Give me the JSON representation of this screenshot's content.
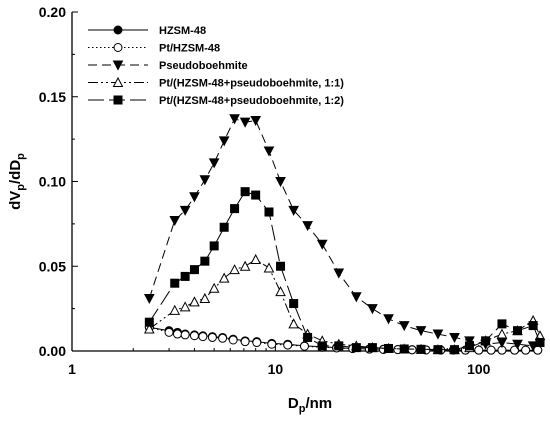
{
  "chart_data": {
    "type": "line",
    "xlabel": "D",
    "xlabel_sub": "p",
    "xlabel_suffix": "/nm",
    "ylabel_parts": [
      "dV",
      "p",
      "/dD",
      "p"
    ],
    "xscale": "log",
    "xlim": [
      1,
      200
    ],
    "ylim": [
      0,
      0.2
    ],
    "xticks": [
      1,
      10,
      100
    ],
    "xtick_labels": [
      "1",
      "10",
      "100"
    ],
    "yticks": [
      0.0,
      0.05,
      0.1,
      0.15,
      0.2
    ],
    "ytick_labels": [
      "0.00",
      "0.05",
      "0.10",
      "0.15",
      "0.20"
    ],
    "grid": false,
    "legend_position": "top-left",
    "series": [
      {
        "name": "HZSM-48",
        "marker": "circle-filled",
        "line": "solid",
        "x": [
          2.4,
          3.0,
          3.3,
          3.6,
          4.0,
          4.4,
          4.9,
          5.5,
          6.2,
          7.1,
          8.1,
          9.6,
          11.5,
          13.9,
          17,
          20,
          24,
          29,
          34,
          40,
          47,
          55,
          65,
          75,
          86,
          100,
          115,
          130,
          150,
          170,
          195
        ],
        "y": [
          0.014,
          0.012,
          0.011,
          0.01,
          0.0095,
          0.009,
          0.0085,
          0.008,
          0.007,
          0.006,
          0.0055,
          0.0045,
          0.004,
          0.003,
          0.0025,
          0.002,
          0.0015,
          0.0012,
          0.001,
          0.0009,
          0.0008,
          0.0007,
          0.0006,
          0.0006,
          0.0005,
          0.0005,
          0.0005,
          0.0005,
          0.0005,
          0.0005,
          0.0005
        ]
      },
      {
        "name": "Pt/HZSM-48",
        "marker": "circle-open",
        "line": "dotted",
        "x": [
          2.4,
          3.0,
          3.3,
          3.6,
          4.0,
          4.4,
          4.9,
          5.5,
          6.2,
          7.1,
          8.1,
          9.6,
          11.5,
          13.9,
          17,
          20,
          24,
          29,
          34,
          40,
          47,
          55,
          65,
          75,
          86,
          100,
          115,
          130,
          150,
          170,
          195
        ],
        "y": [
          0.014,
          0.011,
          0.01,
          0.0095,
          0.009,
          0.0085,
          0.008,
          0.0075,
          0.0065,
          0.0055,
          0.005,
          0.004,
          0.0035,
          0.0028,
          0.0022,
          0.0018,
          0.0014,
          0.0011,
          0.0009,
          0.0008,
          0.0007,
          0.0006,
          0.0005,
          0.0005,
          0.0005,
          0.0005,
          0.0005,
          0.0005,
          0.0005,
          0.0005,
          0.0005
        ]
      },
      {
        "name": "Pseudoboehmite",
        "marker": "triangle-down-filled",
        "line": "dashed",
        "x": [
          2.4,
          3.2,
          3.6,
          4.0,
          4.5,
          5.0,
          5.6,
          6.3,
          7.1,
          8.0,
          9.3,
          10.6,
          12.3,
          14.4,
          17,
          20.5,
          25,
          30,
          36,
          43,
          52,
          63,
          76,
          90,
          108,
          130,
          155,
          185
        ],
        "y": [
          0.031,
          0.077,
          0.083,
          0.091,
          0.101,
          0.111,
          0.124,
          0.137,
          0.135,
          0.136,
          0.118,
          0.1,
          0.083,
          0.074,
          0.063,
          0.046,
          0.032,
          0.025,
          0.019,
          0.015,
          0.012,
          0.01,
          0.008,
          0.006,
          0.004,
          0.005,
          0.004,
          0.003
        ]
      },
      {
        "name": "Pt/(HZSM-48+pseudoboehmite, 1:1)",
        "marker": "triangle-up-open",
        "line": "dash-dot-dot",
        "x": [
          2.4,
          3.2,
          3.6,
          4.0,
          4.5,
          5.0,
          5.6,
          6.3,
          7.1,
          8.0,
          9.3,
          10.6,
          12.3,
          14.4,
          17,
          20.5,
          25,
          30,
          36,
          43,
          52,
          63,
          76,
          90,
          108,
          130,
          155,
          185,
          200
        ],
        "y": [
          0.013,
          0.024,
          0.026,
          0.029,
          0.031,
          0.037,
          0.043,
          0.048,
          0.05,
          0.054,
          0.049,
          0.035,
          0.016,
          0.01,
          0.006,
          0.004,
          0.003,
          0.002,
          0.0015,
          0.0012,
          0.001,
          0.0008,
          0.0008,
          0.002,
          0.006,
          0.01,
          0.012,
          0.018,
          0.009
        ]
      },
      {
        "name": "Pt/(HZSM-48+pseudoboehmite, 1:2)",
        "marker": "square-filled",
        "line": "long-dash",
        "x": [
          2.4,
          3.2,
          3.6,
          4.0,
          4.5,
          5.0,
          5.6,
          6.3,
          7.1,
          8.0,
          9.3,
          10.6,
          12.3,
          14.4,
          17,
          20.5,
          25,
          30,
          36,
          43,
          52,
          63,
          76,
          90,
          108,
          130,
          155,
          185,
          200
        ],
        "y": [
          0.017,
          0.04,
          0.044,
          0.048,
          0.053,
          0.062,
          0.073,
          0.084,
          0.094,
          0.092,
          0.082,
          0.05,
          0.028,
          0.008,
          0.003,
          0.003,
          0.002,
          0.002,
          0.0015,
          0.0012,
          0.001,
          0.0008,
          0.0008,
          0.003,
          0.006,
          0.016,
          0.012,
          0.015,
          0.005
        ]
      }
    ]
  }
}
